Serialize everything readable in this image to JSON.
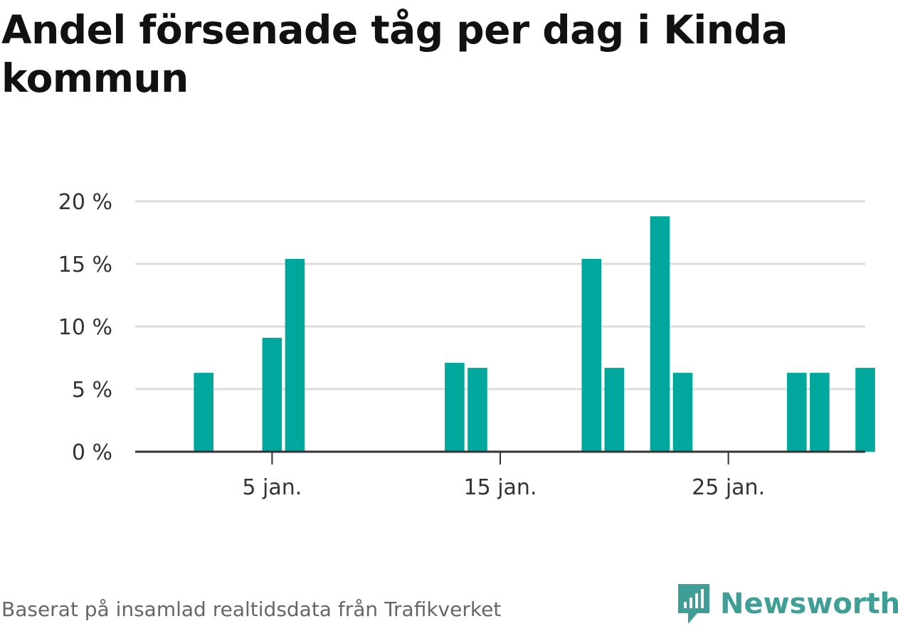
{
  "chart_data": {
    "type": "bar",
    "title": "Andel försenade tåg per dag i Kinda kommun",
    "xlabel": "",
    "ylabel": "",
    "ylim": [
      0,
      20
    ],
    "yticks": [
      0,
      5,
      10,
      15,
      20
    ],
    "ytick_labels": [
      "0 %",
      "5 %",
      "10 %",
      "15 %",
      "20 %"
    ],
    "xlim": [
      -1,
      31
    ],
    "xticks": [
      5,
      15,
      25
    ],
    "xtick_labels": [
      "5 jan.",
      "15 jan.",
      "25 jan."
    ],
    "grid": true,
    "bar_color": "#00a79d",
    "data": [
      {
        "day": 2,
        "value": 6.3
      },
      {
        "day": 5,
        "value": 9.1
      },
      {
        "day": 6,
        "value": 15.4
      },
      {
        "day": 13,
        "value": 7.1
      },
      {
        "day": 14,
        "value": 6.7
      },
      {
        "day": 19,
        "value": 15.4
      },
      {
        "day": 20,
        "value": 6.7
      },
      {
        "day": 22,
        "value": 18.8
      },
      {
        "day": 23,
        "value": 6.3
      },
      {
        "day": 28,
        "value": 6.3
      },
      {
        "day": 29,
        "value": 6.3
      },
      {
        "day": 31,
        "value": 6.7
      }
    ]
  },
  "footer": {
    "source": "Baserat på insamlad realtidsdata från Trafikverket",
    "brand": "Newsworthy",
    "brand_color": "#3f9e95"
  }
}
